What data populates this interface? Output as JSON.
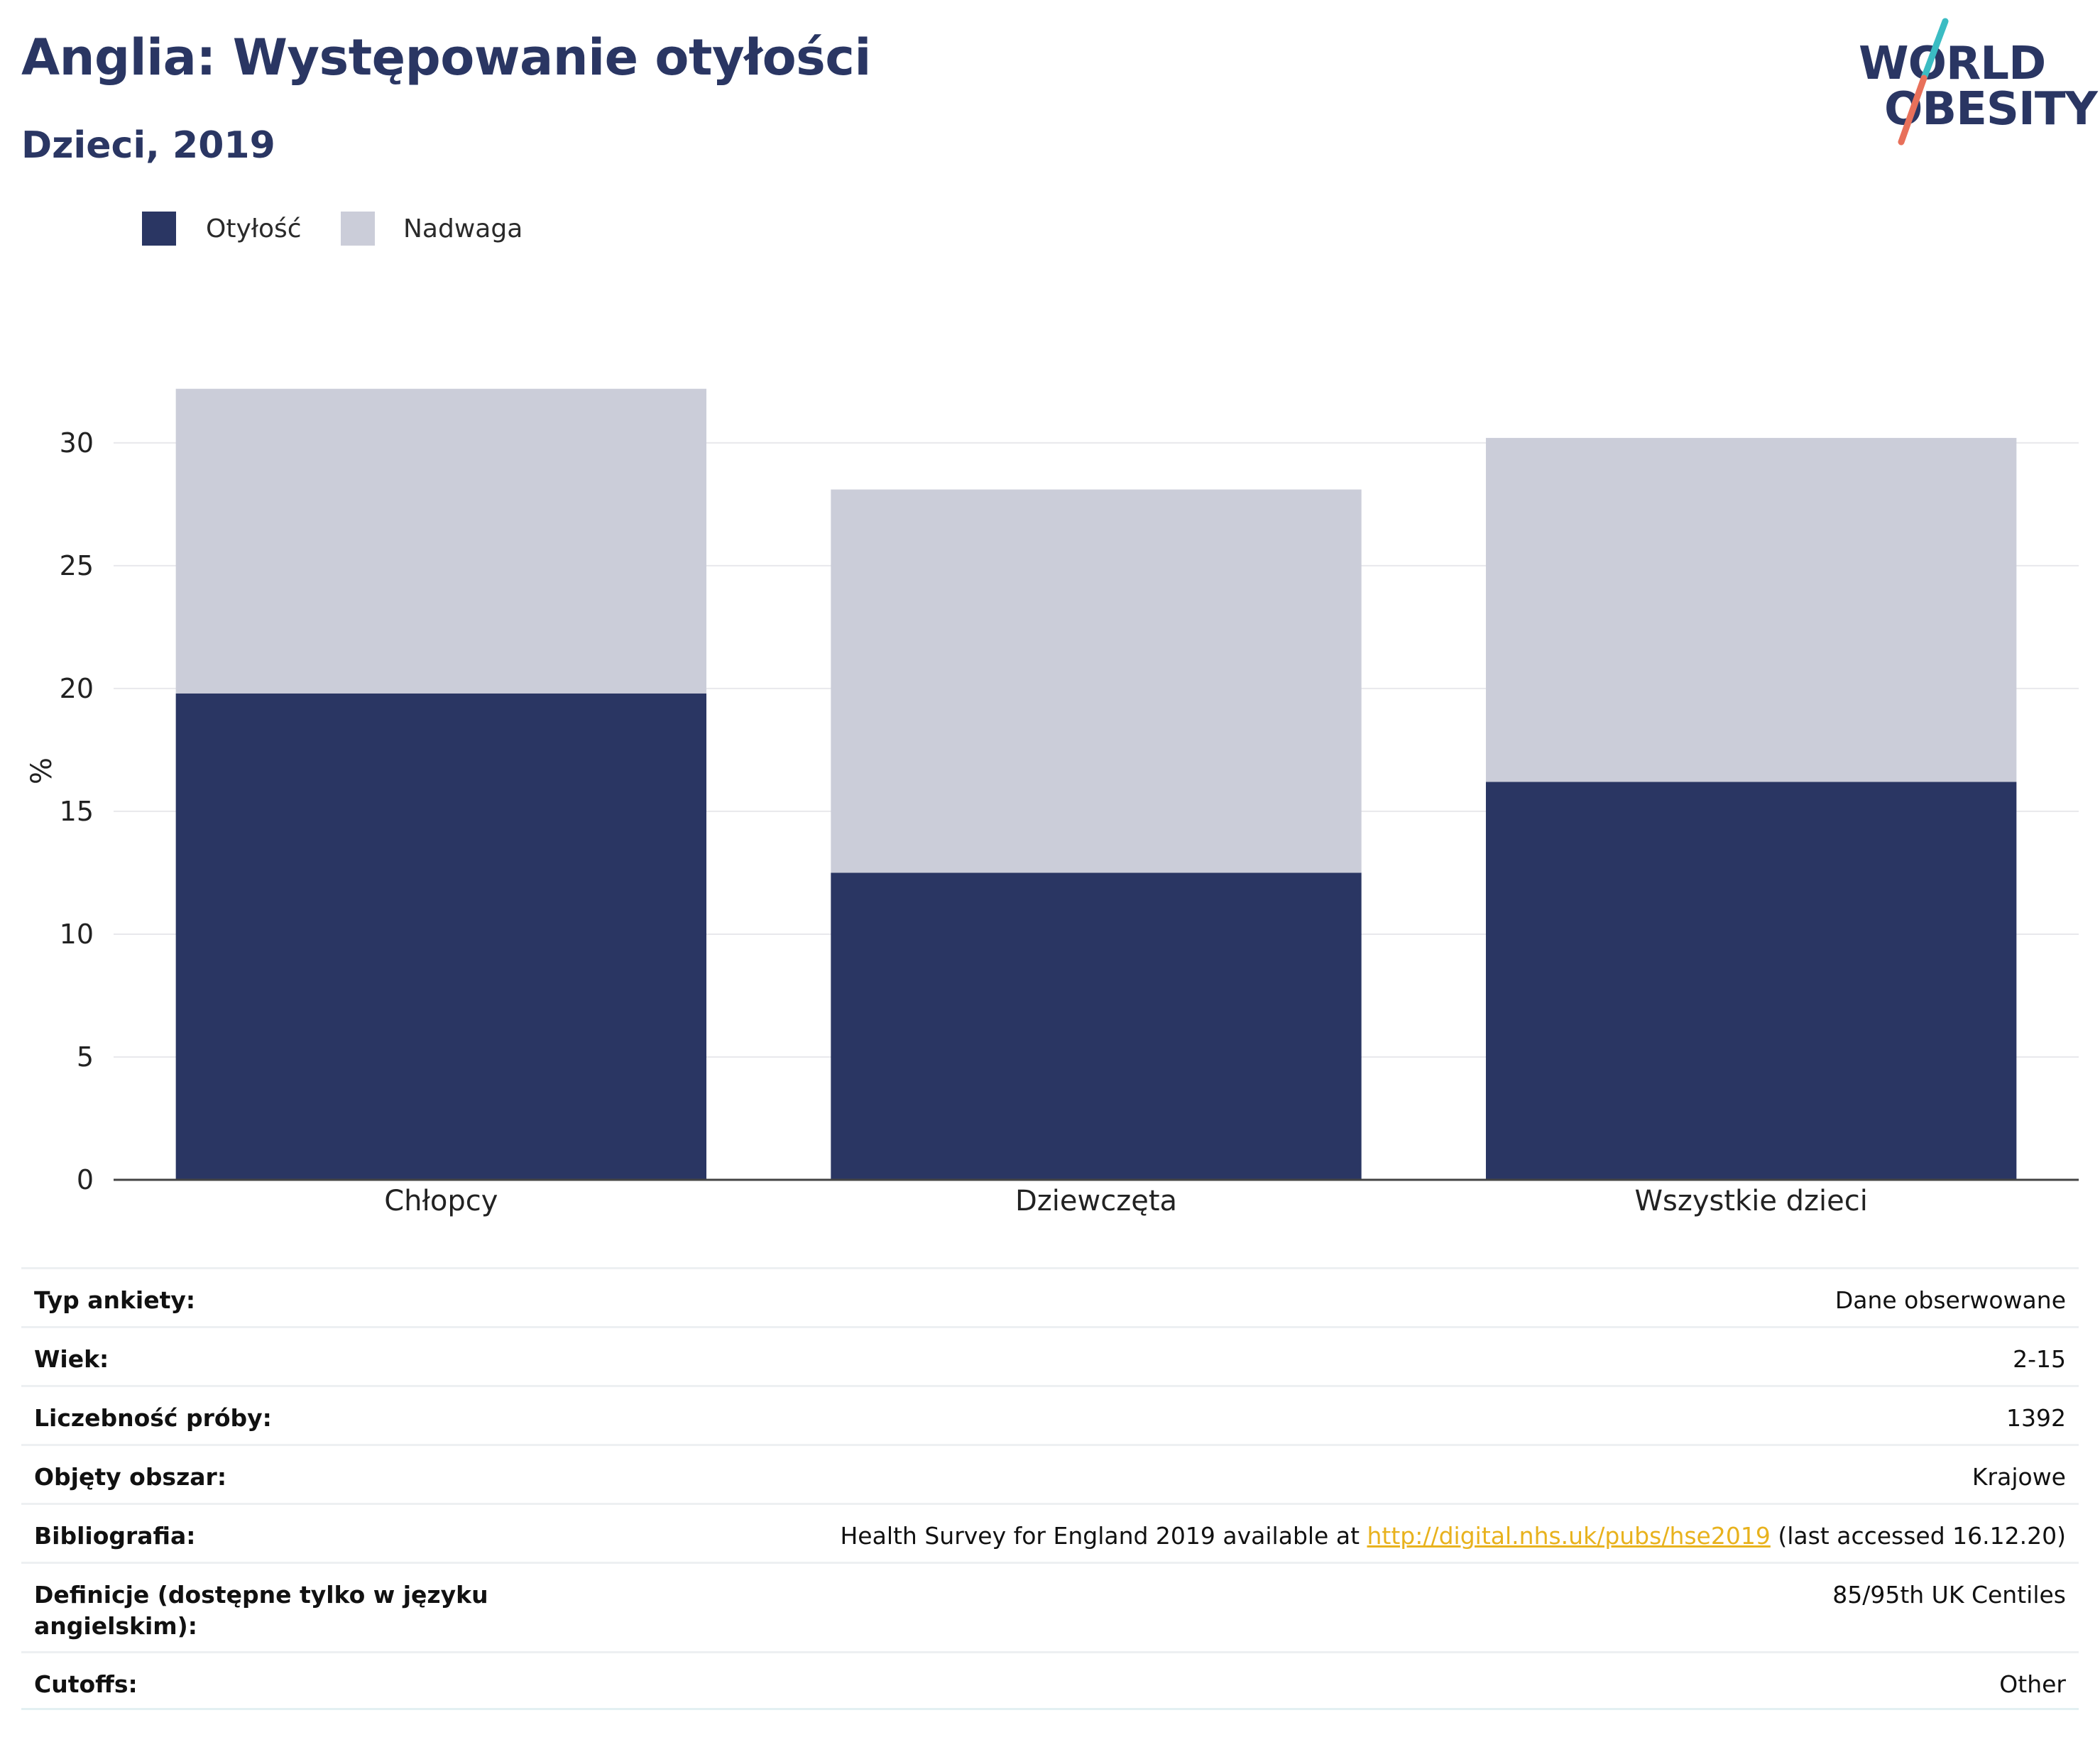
{
  "header": {
    "title": "Anglia: Występowanie otyłości",
    "subtitle": "Dzieci, 2019"
  },
  "logo": {
    "line1": "WORLD",
    "line2": "OBESITY"
  },
  "colors": {
    "obesity": "#2a3663",
    "overweight": "#cbcdd9",
    "logo_teal": "#3bbcc3",
    "logo_coral": "#e8705a",
    "link": "#e8b21d"
  },
  "chart_data": {
    "type": "bar",
    "stacked": true,
    "categories": [
      "Chłopcy",
      "Dziewczęta",
      "Wszystkie dzieci"
    ],
    "series": [
      {
        "name": "Otyłość",
        "values": [
          19.8,
          12.5,
          16.2
        ]
      },
      {
        "name": "Nadwaga",
        "values": [
          12.4,
          15.6,
          14.0
        ]
      }
    ],
    "ylabel": "%",
    "ylim": [
      0,
      33
    ],
    "yticks": [
      0,
      5,
      10,
      15,
      20,
      25,
      30
    ],
    "grid": true,
    "legend_position": "top-left"
  },
  "info": [
    {
      "label": "Typ ankiety:",
      "value": "Dane obserwowane"
    },
    {
      "label": "Wiek:",
      "value": "2-15"
    },
    {
      "label": "Liczebność próby:",
      "value": "1392"
    },
    {
      "label": "Objęty obszar:",
      "value": "Krajowe"
    },
    {
      "label": "Bibliografia:",
      "value_before": "Health Survey for England 2019 available at ",
      "link": "http://digital.nhs.uk/pubs/hse2019",
      "value_after": " (last accessed 16.12.20)"
    },
    {
      "label": "Definicje (dostępne tylko w języku angielskim):",
      "value": "85/95th UK Centiles"
    },
    {
      "label": "Cutoffs:",
      "value": "Other"
    }
  ]
}
